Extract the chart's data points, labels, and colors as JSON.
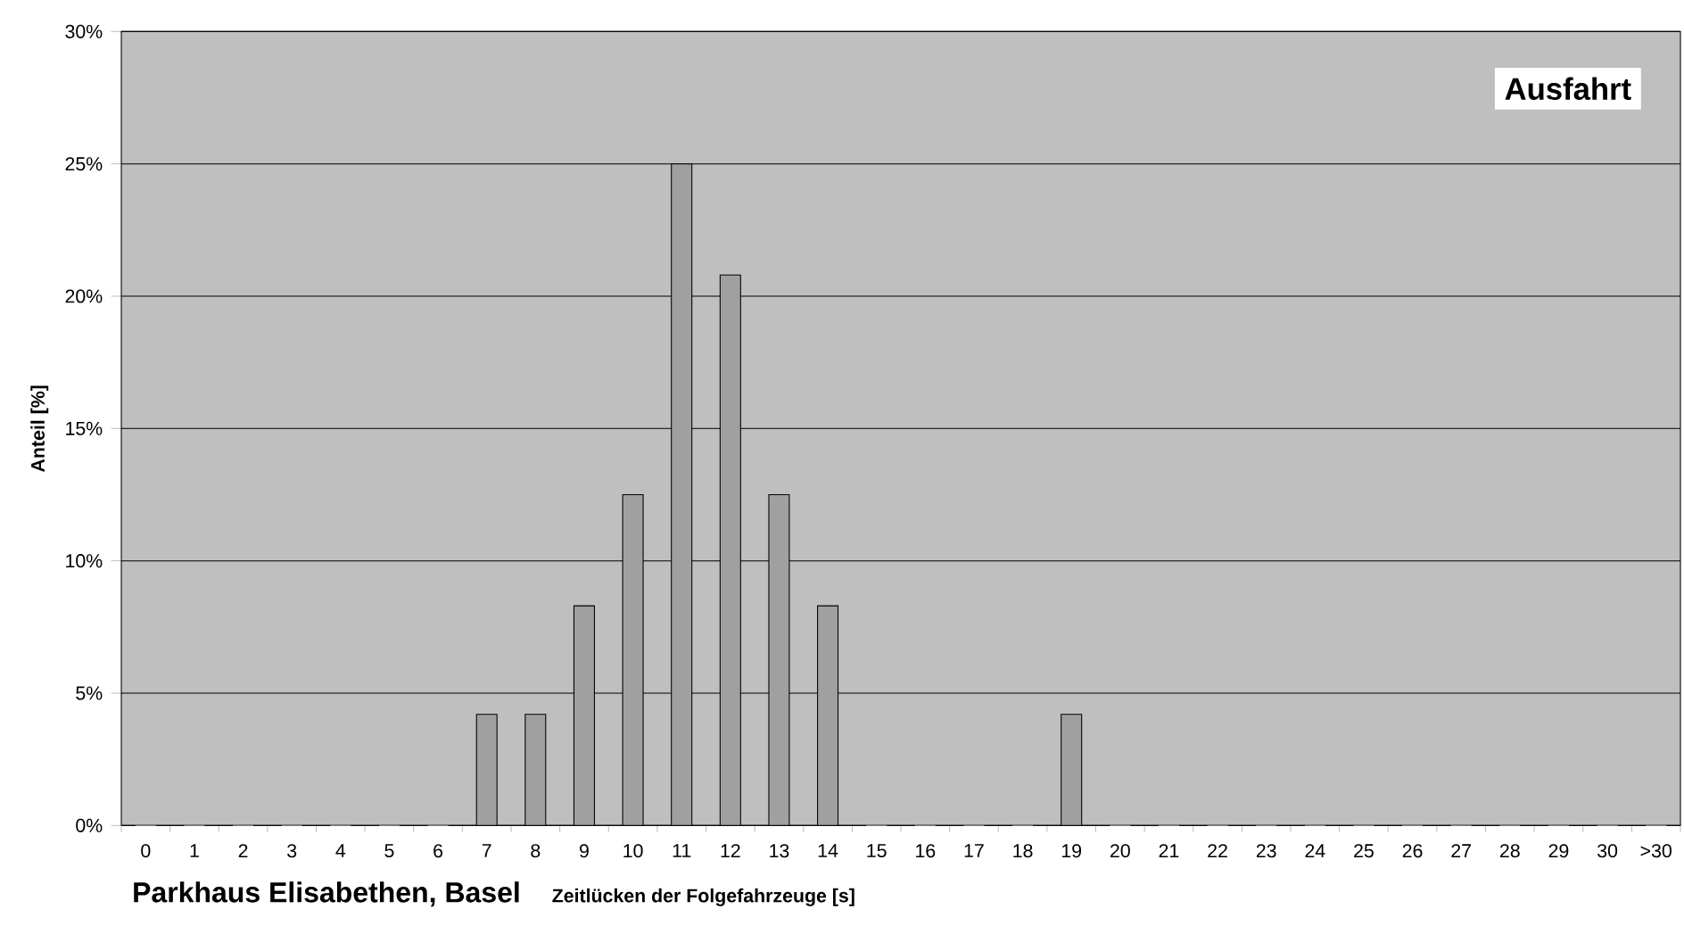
{
  "chart_data": {
    "type": "bar",
    "title": "Parkhaus Elisabethen, Basel",
    "xlabel": "Zeitlücken der Folgefahrzeuge [s]",
    "ylabel": "Anteil [%]",
    "annotations": [
      "Ausfahrt"
    ],
    "categories": [
      "0",
      "1",
      "2",
      "3",
      "4",
      "5",
      "6",
      "7",
      "8",
      "9",
      "10",
      "11",
      "12",
      "13",
      "14",
      "15",
      "16",
      "17",
      "18",
      "19",
      "20",
      "21",
      "22",
      "23",
      "24",
      "25",
      "26",
      "27",
      "28",
      "29",
      "30",
      ">30"
    ],
    "values": [
      0,
      0,
      0,
      0,
      0,
      0,
      0,
      4.2,
      4.2,
      8.3,
      12.5,
      25,
      20.8,
      12.5,
      8.3,
      0,
      0,
      0,
      0,
      4.2,
      0,
      0,
      0,
      0,
      0,
      0,
      0,
      0,
      0,
      0,
      0,
      0
    ],
    "color": "#a0a0a0",
    "ylim": [
      0,
      30
    ],
    "yticks": [
      {
        "value": 0,
        "label": "0%"
      },
      {
        "value": 5,
        "label": "5%"
      },
      {
        "value": 10,
        "label": "10%"
      },
      {
        "value": 15,
        "label": "15%"
      },
      {
        "value": 20,
        "label": "20%"
      },
      {
        "value": 25,
        "label": "25%"
      },
      {
        "value": 30,
        "label": "30%"
      }
    ],
    "grid": "y"
  }
}
